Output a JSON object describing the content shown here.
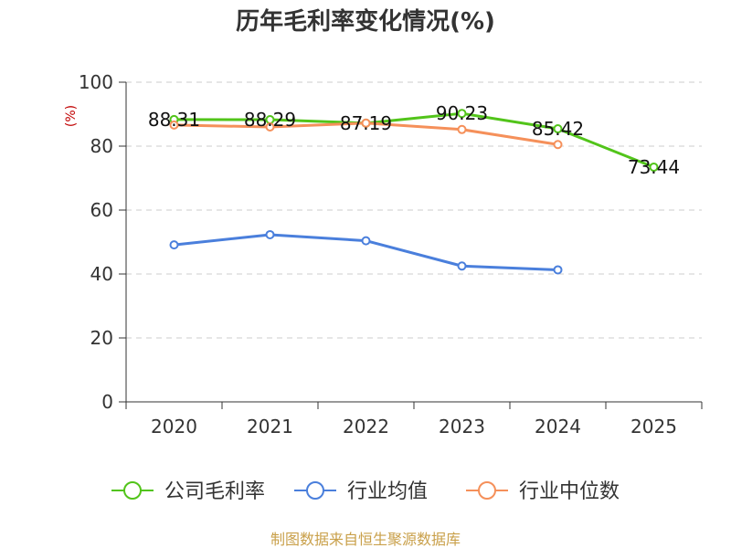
{
  "chart_data": {
    "type": "line",
    "title": "历年毛利率变化情况(%)",
    "ylabel": "(%)",
    "xlabel": "",
    "categories": [
      "2020",
      "2021",
      "2022",
      "2023",
      "2024",
      "2025"
    ],
    "ylim": [
      0,
      100
    ],
    "yticks": [
      0,
      20,
      40,
      60,
      80,
      100
    ],
    "grid": true,
    "legend_position": "bottom",
    "series": [
      {
        "name": "公司毛利率",
        "color": "#52c41a",
        "values": [
          88.31,
          88.29,
          87.19,
          90.23,
          85.42,
          73.44
        ],
        "labels": [
          "88.31",
          "88.29",
          "87.19",
          "90.23",
          "85.42",
          "73.44"
        ]
      },
      {
        "name": "行业均值",
        "color": "#4a7fdc",
        "values": [
          49.1,
          52.3,
          50.4,
          42.5,
          41.3,
          null
        ]
      },
      {
        "name": "行业中位数",
        "color": "#f5905a",
        "values": [
          86.6,
          86.0,
          87.2,
          85.2,
          80.5,
          null
        ]
      }
    ],
    "source": "制图数据来自恒生聚源数据库"
  }
}
